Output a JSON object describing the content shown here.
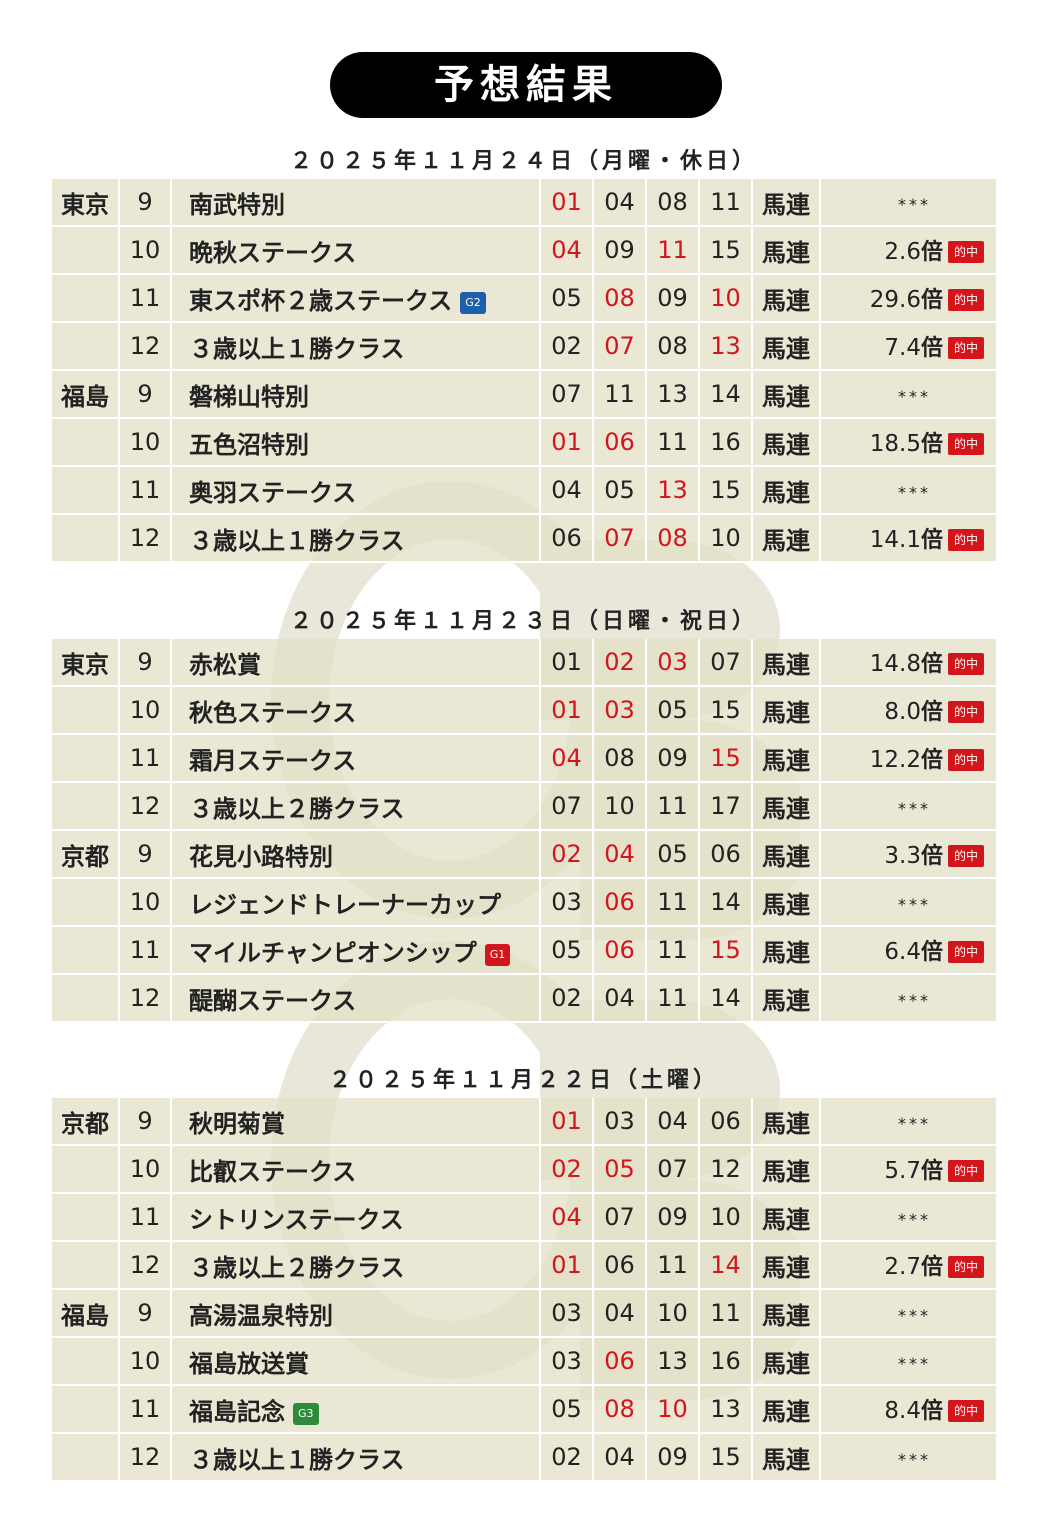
{
  "title": "予想結果",
  "colors": {
    "hit": "#d3151c",
    "G1": "#d3151c",
    "G2": "#1f5ea8",
    "G3": "#2f8a3a"
  },
  "days": [
    {
      "date": "２０２５年１１月２４日（月曜・休日）",
      "rows": [
        {
          "venue": "東京",
          "race": "9",
          "name": "南武特別",
          "grade": "",
          "horses": [
            {
              "n": "01",
              "hit": true
            },
            {
              "n": "04",
              "hit": false
            },
            {
              "n": "08",
              "hit": false
            },
            {
              "n": "11",
              "hit": false
            }
          ],
          "bet": "馬連",
          "odds": "",
          "result_label": "",
          "none": "***"
        },
        {
          "venue": "",
          "race": "10",
          "name": "晩秋ステークス",
          "grade": "",
          "horses": [
            {
              "n": "04",
              "hit": true
            },
            {
              "n": "09",
              "hit": false
            },
            {
              "n": "11",
              "hit": true
            },
            {
              "n": "15",
              "hit": false
            }
          ],
          "bet": "馬連",
          "odds": "2.6",
          "result_label": "的中",
          "none": ""
        },
        {
          "venue": "",
          "race": "11",
          "name": "東スポ杯２歳ステークス",
          "grade": "G2",
          "horses": [
            {
              "n": "05",
              "hit": false
            },
            {
              "n": "08",
              "hit": true
            },
            {
              "n": "09",
              "hit": false
            },
            {
              "n": "10",
              "hit": true
            }
          ],
          "bet": "馬連",
          "odds": "29.6",
          "result_label": "的中",
          "none": ""
        },
        {
          "venue": "",
          "race": "12",
          "name": "３歳以上１勝クラス",
          "grade": "",
          "horses": [
            {
              "n": "02",
              "hit": false
            },
            {
              "n": "07",
              "hit": true
            },
            {
              "n": "08",
              "hit": false
            },
            {
              "n": "13",
              "hit": true
            }
          ],
          "bet": "馬連",
          "odds": "7.4",
          "result_label": "的中",
          "none": ""
        },
        {
          "venue": "福島",
          "race": "9",
          "name": "磐梯山特別",
          "grade": "",
          "horses": [
            {
              "n": "07",
              "hit": false
            },
            {
              "n": "11",
              "hit": false
            },
            {
              "n": "13",
              "hit": false
            },
            {
              "n": "14",
              "hit": false
            }
          ],
          "bet": "馬連",
          "odds": "",
          "result_label": "",
          "none": "***"
        },
        {
          "venue": "",
          "race": "10",
          "name": "五色沼特別",
          "grade": "",
          "horses": [
            {
              "n": "01",
              "hit": true
            },
            {
              "n": "06",
              "hit": true
            },
            {
              "n": "11",
              "hit": false
            },
            {
              "n": "16",
              "hit": false
            }
          ],
          "bet": "馬連",
          "odds": "18.5",
          "result_label": "的中",
          "none": ""
        },
        {
          "venue": "",
          "race": "11",
          "name": "奥羽ステークス",
          "grade": "",
          "horses": [
            {
              "n": "04",
              "hit": false
            },
            {
              "n": "05",
              "hit": false
            },
            {
              "n": "13",
              "hit": true
            },
            {
              "n": "15",
              "hit": false
            }
          ],
          "bet": "馬連",
          "odds": "",
          "result_label": "",
          "none": "***"
        },
        {
          "venue": "",
          "race": "12",
          "name": "３歳以上１勝クラス",
          "grade": "",
          "horses": [
            {
              "n": "06",
              "hit": false
            },
            {
              "n": "07",
              "hit": true
            },
            {
              "n": "08",
              "hit": true
            },
            {
              "n": "10",
              "hit": false
            }
          ],
          "bet": "馬連",
          "odds": "14.1",
          "result_label": "的中",
          "none": ""
        }
      ]
    },
    {
      "date": "２０２５年１１月２３日（日曜・祝日）",
      "rows": [
        {
          "venue": "東京",
          "race": "9",
          "name": "赤松賞",
          "grade": "",
          "horses": [
            {
              "n": "01",
              "hit": false
            },
            {
              "n": "02",
              "hit": true
            },
            {
              "n": "03",
              "hit": true
            },
            {
              "n": "07",
              "hit": false
            }
          ],
          "bet": "馬連",
          "odds": "14.8",
          "result_label": "的中",
          "none": ""
        },
        {
          "venue": "",
          "race": "10",
          "name": "秋色ステークス",
          "grade": "",
          "horses": [
            {
              "n": "01",
              "hit": true
            },
            {
              "n": "03",
              "hit": true
            },
            {
              "n": "05",
              "hit": false
            },
            {
              "n": "15",
              "hit": false
            }
          ],
          "bet": "馬連",
          "odds": "8.0",
          "result_label": "的中",
          "none": ""
        },
        {
          "venue": "",
          "race": "11",
          "name": "霜月ステークス",
          "grade": "",
          "horses": [
            {
              "n": "04",
              "hit": true
            },
            {
              "n": "08",
              "hit": false
            },
            {
              "n": "09",
              "hit": false
            },
            {
              "n": "15",
              "hit": true
            }
          ],
          "bet": "馬連",
          "odds": "12.2",
          "result_label": "的中",
          "none": ""
        },
        {
          "venue": "",
          "race": "12",
          "name": "３歳以上２勝クラス",
          "grade": "",
          "horses": [
            {
              "n": "07",
              "hit": false
            },
            {
              "n": "10",
              "hit": false
            },
            {
              "n": "11",
              "hit": false
            },
            {
              "n": "17",
              "hit": false
            }
          ],
          "bet": "馬連",
          "odds": "",
          "result_label": "",
          "none": "***"
        },
        {
          "venue": "京都",
          "race": "9",
          "name": "花見小路特別",
          "grade": "",
          "horses": [
            {
              "n": "02",
              "hit": true
            },
            {
              "n": "04",
              "hit": true
            },
            {
              "n": "05",
              "hit": false
            },
            {
              "n": "06",
              "hit": false
            }
          ],
          "bet": "馬連",
          "odds": "3.3",
          "result_label": "的中",
          "none": ""
        },
        {
          "venue": "",
          "race": "10",
          "name": "レジェンドトレーナーカップ",
          "grade": "",
          "horses": [
            {
              "n": "03",
              "hit": false
            },
            {
              "n": "06",
              "hit": true
            },
            {
              "n": "11",
              "hit": false
            },
            {
              "n": "14",
              "hit": false
            }
          ],
          "bet": "馬連",
          "odds": "",
          "result_label": "",
          "none": "***"
        },
        {
          "venue": "",
          "race": "11",
          "name": "マイルチャンピオンシップ",
          "grade": "G1",
          "horses": [
            {
              "n": "05",
              "hit": false
            },
            {
              "n": "06",
              "hit": true
            },
            {
              "n": "11",
              "hit": false
            },
            {
              "n": "15",
              "hit": true
            }
          ],
          "bet": "馬連",
          "odds": "6.4",
          "result_label": "的中",
          "none": ""
        },
        {
          "venue": "",
          "race": "12",
          "name": "醍醐ステークス",
          "grade": "",
          "horses": [
            {
              "n": "02",
              "hit": false
            },
            {
              "n": "04",
              "hit": false
            },
            {
              "n": "11",
              "hit": false
            },
            {
              "n": "14",
              "hit": false
            }
          ],
          "bet": "馬連",
          "odds": "",
          "result_label": "",
          "none": "***"
        }
      ]
    },
    {
      "date": "２０２５年１１月２２日（土曜）",
      "rows": [
        {
          "venue": "京都",
          "race": "9",
          "name": "秋明菊賞",
          "grade": "",
          "horses": [
            {
              "n": "01",
              "hit": true
            },
            {
              "n": "03",
              "hit": false
            },
            {
              "n": "04",
              "hit": false
            },
            {
              "n": "06",
              "hit": false
            }
          ],
          "bet": "馬連",
          "odds": "",
          "result_label": "",
          "none": "***"
        },
        {
          "venue": "",
          "race": "10",
          "name": "比叡ステークス",
          "grade": "",
          "horses": [
            {
              "n": "02",
              "hit": true
            },
            {
              "n": "05",
              "hit": true
            },
            {
              "n": "07",
              "hit": false
            },
            {
              "n": "12",
              "hit": false
            }
          ],
          "bet": "馬連",
          "odds": "5.7",
          "result_label": "的中",
          "none": ""
        },
        {
          "venue": "",
          "race": "11",
          "name": "シトリンステークス",
          "grade": "",
          "horses": [
            {
              "n": "04",
              "hit": true
            },
            {
              "n": "07",
              "hit": false
            },
            {
              "n": "09",
              "hit": false
            },
            {
              "n": "10",
              "hit": false
            }
          ],
          "bet": "馬連",
          "odds": "",
          "result_label": "",
          "none": "***"
        },
        {
          "venue": "",
          "race": "12",
          "name": "３歳以上２勝クラス",
          "grade": "",
          "horses": [
            {
              "n": "01",
              "hit": true
            },
            {
              "n": "06",
              "hit": false
            },
            {
              "n": "11",
              "hit": false
            },
            {
              "n": "14",
              "hit": true
            }
          ],
          "bet": "馬連",
          "odds": "2.7",
          "result_label": "的中",
          "none": ""
        },
        {
          "venue": "福島",
          "race": "9",
          "name": "高湯温泉特別",
          "grade": "",
          "horses": [
            {
              "n": "03",
              "hit": false
            },
            {
              "n": "04",
              "hit": false
            },
            {
              "n": "10",
              "hit": false
            },
            {
              "n": "11",
              "hit": false
            }
          ],
          "bet": "馬連",
          "odds": "",
          "result_label": "",
          "none": "***"
        },
        {
          "venue": "",
          "race": "10",
          "name": "福島放送賞",
          "grade": "",
          "horses": [
            {
              "n": "03",
              "hit": false
            },
            {
              "n": "06",
              "hit": true
            },
            {
              "n": "13",
              "hit": false
            },
            {
              "n": "16",
              "hit": false
            }
          ],
          "bet": "馬連",
          "odds": "",
          "result_label": "",
          "none": "***"
        },
        {
          "venue": "",
          "race": "11",
          "name": "福島記念",
          "grade": "G3",
          "horses": [
            {
              "n": "05",
              "hit": false
            },
            {
              "n": "08",
              "hit": true
            },
            {
              "n": "10",
              "hit": true
            },
            {
              "n": "13",
              "hit": false
            }
          ],
          "bet": "馬連",
          "odds": "8.4",
          "result_label": "的中",
          "none": ""
        },
        {
          "venue": "",
          "race": "12",
          "name": "３歳以上１勝クラス",
          "grade": "",
          "horses": [
            {
              "n": "02",
              "hit": false
            },
            {
              "n": "04",
              "hit": false
            },
            {
              "n": "09",
              "hit": false
            },
            {
              "n": "15",
              "hit": false
            }
          ],
          "bet": "馬連",
          "odds": "",
          "result_label": "",
          "none": "***"
        }
      ]
    }
  ],
  "odds_suffix": "倍"
}
